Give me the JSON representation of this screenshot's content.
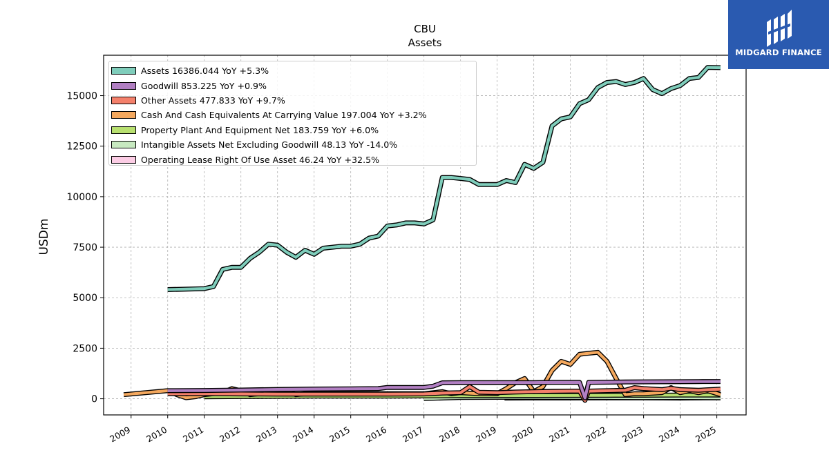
{
  "logo": {
    "text": "MIDGARD FINANCE",
    "name": "midgard-finance-logo"
  },
  "chart_data": {
    "type": "line",
    "title": "CBU",
    "subtitle": "Assets",
    "xlabel": "",
    "ylabel": "USDm",
    "x_ticks": [
      "2009",
      "2010",
      "2011",
      "2012",
      "2013",
      "2014",
      "2015",
      "2016",
      "2017",
      "2018",
      "2019",
      "2020",
      "2021",
      "2022",
      "2023",
      "2024",
      "2025"
    ],
    "y_ticks": [
      "0",
      "2500",
      "5000",
      "7500",
      "10000",
      "12500",
      "15000"
    ],
    "xlim": [
      2008.25,
      2025.8
    ],
    "ylim": [
      -800,
      17000
    ],
    "grid": true,
    "legend_position": "top-left",
    "series": [
      {
        "name": "Assets",
        "legend_label": "Assets  16386.044 YoY +5.3%",
        "color": "#7fcdbb",
        "x": [
          2010,
          2011,
          2011.25,
          2011.5,
          2011.75,
          2012,
          2012.25,
          2012.5,
          2012.75,
          2013,
          2013.25,
          2013.5,
          2013.75,
          2014,
          2014.25,
          2014.5,
          2014.75,
          2015,
          2015.25,
          2015.5,
          2015.75,
          2016,
          2016.25,
          2016.5,
          2016.75,
          2017,
          2017.25,
          2017.5,
          2017.75,
          2018,
          2018.25,
          2018.5,
          2018.75,
          2019,
          2019.25,
          2019.5,
          2019.75,
          2020,
          2020.25,
          2020.5,
          2020.75,
          2021,
          2021.25,
          2021.5,
          2021.75,
          2022,
          2022.25,
          2022.5,
          2022.75,
          2023,
          2023.25,
          2023.5,
          2023.75,
          2024,
          2024.25,
          2024.5,
          2024.75,
          2025.1
        ],
        "y": [
          5400,
          5450,
          5550,
          6400,
          6500,
          6500,
          6950,
          7250,
          7650,
          7600,
          7250,
          7000,
          7350,
          7150,
          7450,
          7500,
          7550,
          7550,
          7650,
          7950,
          8050,
          8550,
          8600,
          8700,
          8700,
          8650,
          8850,
          10950,
          10950,
          10900,
          10850,
          10600,
          10600,
          10600,
          10800,
          10700,
          11600,
          11400,
          11700,
          13500,
          13850,
          13950,
          14600,
          14800,
          15400,
          15650,
          15700,
          15550,
          15650,
          15850,
          15300,
          15100,
          15350,
          15500,
          15850,
          15900,
          16400,
          16386
        ]
      },
      {
        "name": "Goodwill",
        "legend_label": "Goodwill  853.225 YoY +0.9%",
        "color": "#b17fc2",
        "x": [
          2010,
          2011,
          2012,
          2013,
          2014,
          2015,
          2015.75,
          2016,
          2016.75,
          2017,
          2017.25,
          2017.5,
          2018,
          2019,
          2019.75,
          2020,
          2020.5,
          2021,
          2021.25,
          2021.4,
          2021.5,
          2022,
          2022.5,
          2023,
          2023.5,
          2024,
          2024.5,
          2025.1
        ],
        "y": [
          400,
          410,
          430,
          460,
          480,
          490,
          500,
          560,
          560,
          560,
          620,
          790,
          800,
          800,
          800,
          800,
          810,
          810,
          810,
          40,
          810,
          820,
          830,
          835,
          840,
          845,
          850,
          853
        ]
      },
      {
        "name": "Other Assets",
        "legend_label": "Other Assets  477.833 YoY +9.7%",
        "color": "#f4806b",
        "x": [
          2010,
          2011,
          2012,
          2013,
          2014,
          2015,
          2016,
          2017,
          2017.5,
          2018,
          2018.25,
          2018.5,
          2019,
          2019.5,
          2020,
          2020.5,
          2021,
          2021.25,
          2021.4,
          2021.5,
          2022,
          2022.5,
          2022.75,
          2023,
          2023.5,
          2023.75,
          2024,
          2024.5,
          2025.1
        ],
        "y": [
          250,
          250,
          240,
          230,
          230,
          230,
          230,
          240,
          280,
          300,
          600,
          320,
          300,
          330,
          350,
          370,
          380,
          380,
          -80,
          380,
          400,
          420,
          550,
          500,
          450,
          520,
          450,
          420,
          478
        ]
      },
      {
        "name": "Cash And Cash Equivalents At Carrying Value",
        "legend_label": "Cash And Cash Equivalents At Carrying Value  197.004 YoY +3.2%",
        "color": "#f4a85e",
        "x": [
          2008.8,
          2010,
          2010.25,
          2010.5,
          2010.75,
          2011,
          2011.25,
          2011.5,
          2011.75,
          2012,
          2012.25,
          2012.5,
          2012.75,
          2013,
          2013.25,
          2013.5,
          2013.75,
          2014,
          2014.5,
          2015,
          2015.5,
          2016,
          2016.5,
          2017,
          2017.25,
          2017.5,
          2017.75,
          2018,
          2018.5,
          2019,
          2019.25,
          2019.5,
          2019.75,
          2020,
          2020.25,
          2020.5,
          2020.75,
          2021,
          2021.25,
          2021.5,
          2021.75,
          2022,
          2022.25,
          2022.5,
          2022.75,
          2023,
          2023.5,
          2023.75,
          2024,
          2024.25,
          2024.5,
          2024.75,
          2025.1
        ],
        "y": [
          200,
          400,
          200,
          50,
          100,
          200,
          250,
          300,
          500,
          400,
          200,
          250,
          350,
          300,
          400,
          200,
          250,
          250,
          250,
          250,
          250,
          250,
          250,
          250,
          300,
          350,
          250,
          300,
          250,
          250,
          500,
          800,
          1000,
          350,
          600,
          1400,
          1850,
          1700,
          2200,
          2250,
          2300,
          1850,
          1000,
          200,
          250,
          250,
          300,
          550,
          300,
          400,
          300,
          400,
          197
        ]
      },
      {
        "name": "Property Plant And Equipment Net",
        "legend_label": "Property Plant And Equipment Net  183.759 YoY +6.0%",
        "color": "#b8e070",
        "x": [
          2011,
          2012,
          2013,
          2014,
          2015,
          2016,
          2017,
          2018,
          2019,
          2020,
          2021,
          2022,
          2023,
          2024,
          2025.1
        ],
        "y": [
          100,
          110,
          120,
          130,
          130,
          130,
          140,
          150,
          155,
          160,
          165,
          170,
          175,
          180,
          184
        ]
      },
      {
        "name": "Intangible Assets Net Excluding Goodwill",
        "legend_label": "Intangible Assets Net Excluding Goodwill  48.13 YoY -14.0%",
        "color": "#c7e9c0",
        "x": [
          2017,
          2018,
          2019,
          2020,
          2021,
          2022,
          2023,
          2024,
          2025.1
        ],
        "y": [
          10,
          60,
          70,
          70,
          65,
          60,
          55,
          56,
          48
        ]
      },
      {
        "name": "Operating Lease Right Of Use Asset",
        "legend_label": "Operating Lease Right Of Use Asset  46.24 YoY +32.5%",
        "color": "#fccde5",
        "x": [
          2019.2,
          2020,
          2021,
          2022,
          2023,
          2024,
          2025.1
        ],
        "y": [
          35,
          36,
          38,
          40,
          40,
          35,
          46
        ]
      }
    ]
  }
}
